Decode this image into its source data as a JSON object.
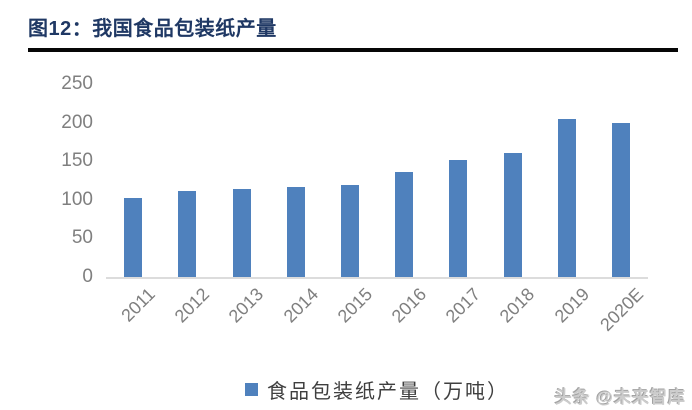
{
  "header": {
    "title": "图12：我国食品包装纸产量",
    "title_color": "#1F3864",
    "rule_color": "#060606"
  },
  "chart_data": {
    "type": "bar",
    "title": "我国食品包装纸产量",
    "categories": [
      "2011",
      "2012",
      "2013",
      "2014",
      "2015",
      "2016",
      "2017",
      "2018",
      "2019",
      "2020E"
    ],
    "values": [
      102,
      111,
      114,
      116,
      119,
      136,
      152,
      161,
      205,
      200
    ],
    "series_name": "食品包装纸产量（万吨）",
    "xlabel": "",
    "ylabel": "",
    "ylim": [
      0,
      250
    ],
    "yticks": [
      0,
      50,
      100,
      150,
      200,
      250
    ],
    "bar_color": "#4F81BD",
    "axis_color": "#DCDCDC",
    "tick_label_color": "#7F7F7F",
    "grid": false,
    "legend_position": "bottom"
  },
  "legend": {
    "swatch_color": "#4F81BD",
    "label": "食品包装纸产量（万吨）"
  },
  "watermark": {
    "text": "头条 @未来智库"
  }
}
